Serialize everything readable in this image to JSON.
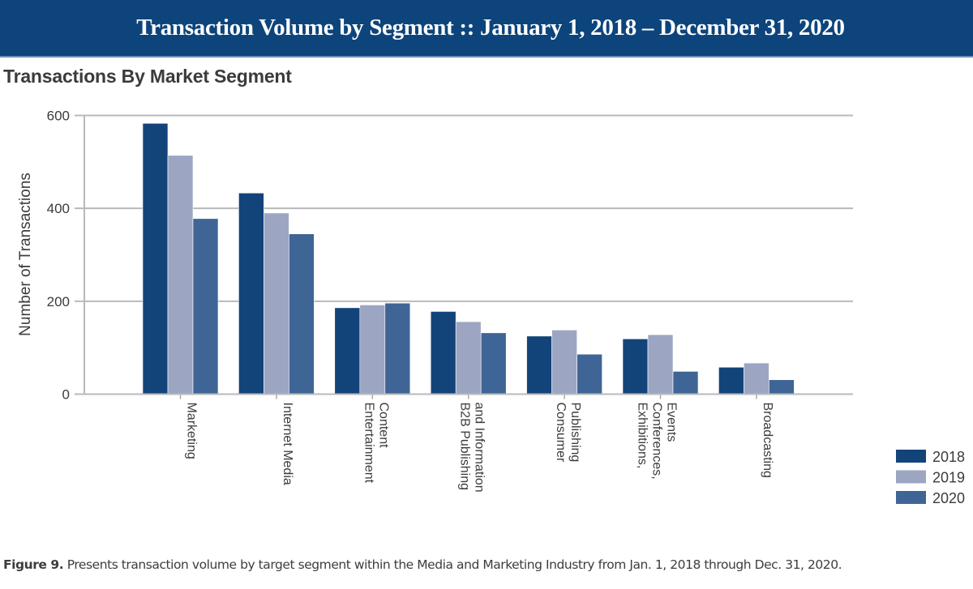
{
  "header": {
    "title": "Transaction Volume by Segment :: January 1, 2018 – December 31, 2020",
    "subtitle": "Transactions By Market Segment"
  },
  "caption": {
    "label": "Figure 9.",
    "text": " Presents transaction volume by target segment within the Media and Marketing Industry from Jan. 1, 2018 through Dec. 31, 2020."
  },
  "chart_data": {
    "type": "bar",
    "title": "Transactions By Market Segment",
    "xlabel": "",
    "ylabel": "Number of Transactions",
    "ylim": [
      0,
      600
    ],
    "yticks": [
      0,
      200,
      400,
      600
    ],
    "grid": true,
    "legend_position": "bottom-right",
    "categories": [
      [
        "Marketing"
      ],
      [
        "Internet Media"
      ],
      [
        "Entertainment",
        "Content"
      ],
      [
        "B2B Publishing",
        "and Information"
      ],
      [
        "Consumer",
        "Publishing"
      ],
      [
        "Exhibitions,",
        "Conferences,",
        "Events"
      ],
      [
        "Broadcasting"
      ]
    ],
    "series": [
      {
        "name": "2018",
        "color": "#134479",
        "values": [
          583,
          433,
          186,
          178,
          125,
          119,
          58
        ]
      },
      {
        "name": "2019",
        "color": "#9ca6c3",
        "values": [
          514,
          390,
          192,
          156,
          138,
          128,
          67
        ]
      },
      {
        "name": "2020",
        "color": "#3f6597",
        "values": [
          378,
          345,
          196,
          132,
          86,
          49,
          31
        ]
      }
    ]
  }
}
